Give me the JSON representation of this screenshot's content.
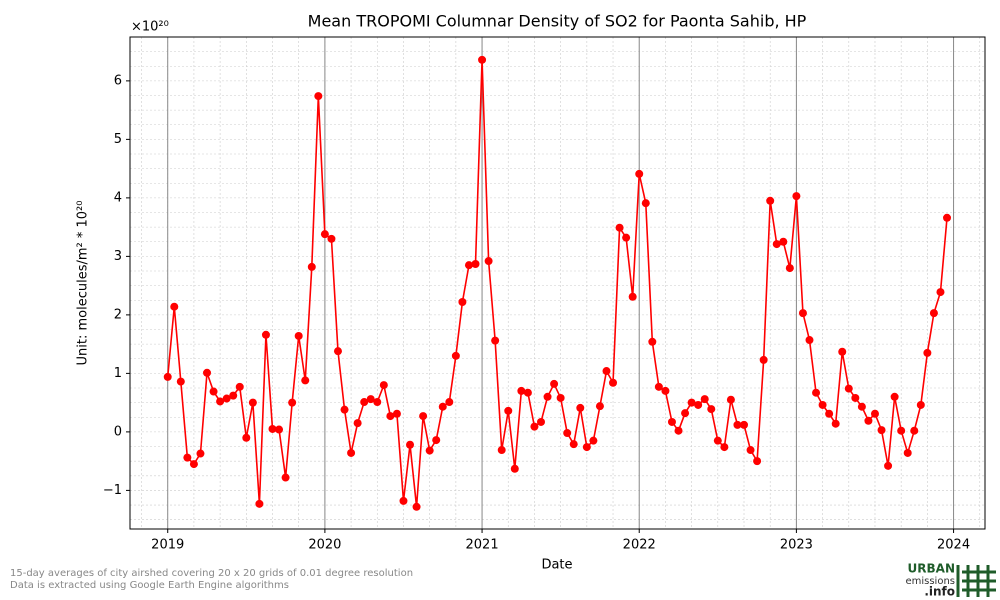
{
  "chart_data": {
    "type": "line",
    "title": "Mean TROPOMI Columnar Density of SO2 for Paonta Sahib, HP",
    "x_label": "Date",
    "y_label": "Unit: molecules/m² * 10²⁰",
    "y_offset_label": "×10²⁰",
    "xlim": [
      2018.76,
      2024.2
    ],
    "xticks": [
      2019,
      2020,
      2021,
      2022,
      2023,
      2024
    ],
    "ylim": [
      -1.66,
      6.75
    ],
    "yticks": [
      {
        "value": -1,
        "label": "−1"
      },
      0,
      1,
      2,
      3,
      4,
      5,
      6
    ],
    "grid": true,
    "x": [
      2019.0,
      2019.0417,
      2019.0833,
      2019.125,
      2019.1667,
      2019.2083,
      2019.25,
      2019.2917,
      2019.3333,
      2019.375,
      2019.4167,
      2019.4583,
      2019.5,
      2019.5417,
      2019.5833,
      2019.625,
      2019.6667,
      2019.7083,
      2019.75,
      2019.7917,
      2019.8333,
      2019.875,
      2019.9167,
      2019.9583,
      2020.0,
      2020.0417,
      2020.0833,
      2020.125,
      2020.1667,
      2020.2083,
      2020.25,
      2020.2917,
      2020.3333,
      2020.375,
      2020.4167,
      2020.4583,
      2020.5,
      2020.5417,
      2020.5833,
      2020.625,
      2020.6667,
      2020.7083,
      2020.75,
      2020.7917,
      2020.8333,
      2020.875,
      2020.9167,
      2020.9583,
      2021.0,
      2021.0417,
      2021.0833,
      2021.125,
      2021.1667,
      2021.2083,
      2021.25,
      2021.2917,
      2021.3333,
      2021.375,
      2021.4167,
      2021.4583,
      2021.5,
      2021.5417,
      2021.5833,
      2021.625,
      2021.6667,
      2021.7083,
      2021.75,
      2021.7917,
      2021.8333,
      2021.875,
      2021.9167,
      2021.9583,
      2022.0,
      2022.0417,
      2022.0833,
      2022.125,
      2022.1667,
      2022.2083,
      2022.25,
      2022.2917,
      2022.3333,
      2022.375,
      2022.4167,
      2022.4583,
      2022.5,
      2022.5417,
      2022.5833,
      2022.625,
      2022.6667,
      2022.7083,
      2022.75,
      2022.7917,
      2022.8333,
      2022.875,
      2022.9167,
      2022.9583,
      2023.0,
      2023.0417,
      2023.0833,
      2023.125,
      2023.1667,
      2023.2083,
      2023.25,
      2023.2917,
      2023.3333,
      2023.375,
      2023.4167,
      2023.4583,
      2023.5,
      2023.5417,
      2023.5833,
      2023.625,
      2023.6667,
      2023.7083,
      2023.75,
      2023.7917,
      2023.8333,
      2023.875,
      2023.9167,
      2023.9583
    ],
    "series": [
      {
        "color": "#ff0000",
        "values": [
          0.94,
          2.14,
          0.86,
          -0.44,
          -0.55,
          -0.37,
          1.01,
          0.69,
          0.52,
          0.57,
          0.62,
          0.77,
          -0.1,
          0.5,
          -1.23,
          1.66,
          0.05,
          0.04,
          -0.78,
          0.5,
          1.64,
          0.88,
          2.82,
          5.74,
          3.38,
          3.3,
          1.38,
          0.38,
          -0.36,
          0.15,
          0.51,
          0.56,
          0.51,
          0.8,
          0.27,
          0.31,
          -1.18,
          -0.22,
          -1.28,
          0.27,
          -0.32,
          -0.14,
          0.43,
          0.51,
          1.3,
          2.22,
          2.85,
          2.87,
          6.36,
          2.92,
          1.56,
          -0.31,
          0.36,
          -0.63,
          0.7,
          0.67,
          0.09,
          0.17,
          0.6,
          0.82,
          0.58,
          -0.02,
          -0.21,
          0.41,
          -0.26,
          -0.15,
          0.44,
          1.04,
          0.84,
          3.49,
          3.32,
          2.31,
          4.41,
          3.91,
          1.54,
          0.77,
          0.7,
          0.17,
          0.02,
          0.32,
          0.5,
          0.46,
          0.56,
          0.39,
          -0.15,
          -0.26,
          0.55,
          0.12,
          0.12,
          -0.31,
          -0.5,
          1.23,
          3.95,
          3.21,
          3.25,
          2.8,
          4.03,
          2.03,
          1.57,
          0.67,
          0.46,
          0.31,
          0.14,
          1.37,
          0.74,
          0.58,
          0.43,
          0.19,
          0.31,
          0.03,
          -0.58,
          0.6,
          0.02,
          -0.36,
          0.02,
          0.46,
          1.35,
          2.03,
          2.39,
          3.66
        ]
      }
    ]
  },
  "footnote": [
    "15-day averages of city airshed covering 20 x 20 grids of 0.01 degree resolution",
    "Data is extracted using Google Earth Engine algorithms"
  ],
  "logo": {
    "line1": "URBAN",
    "line2": "emissions",
    "line3": ".info"
  }
}
